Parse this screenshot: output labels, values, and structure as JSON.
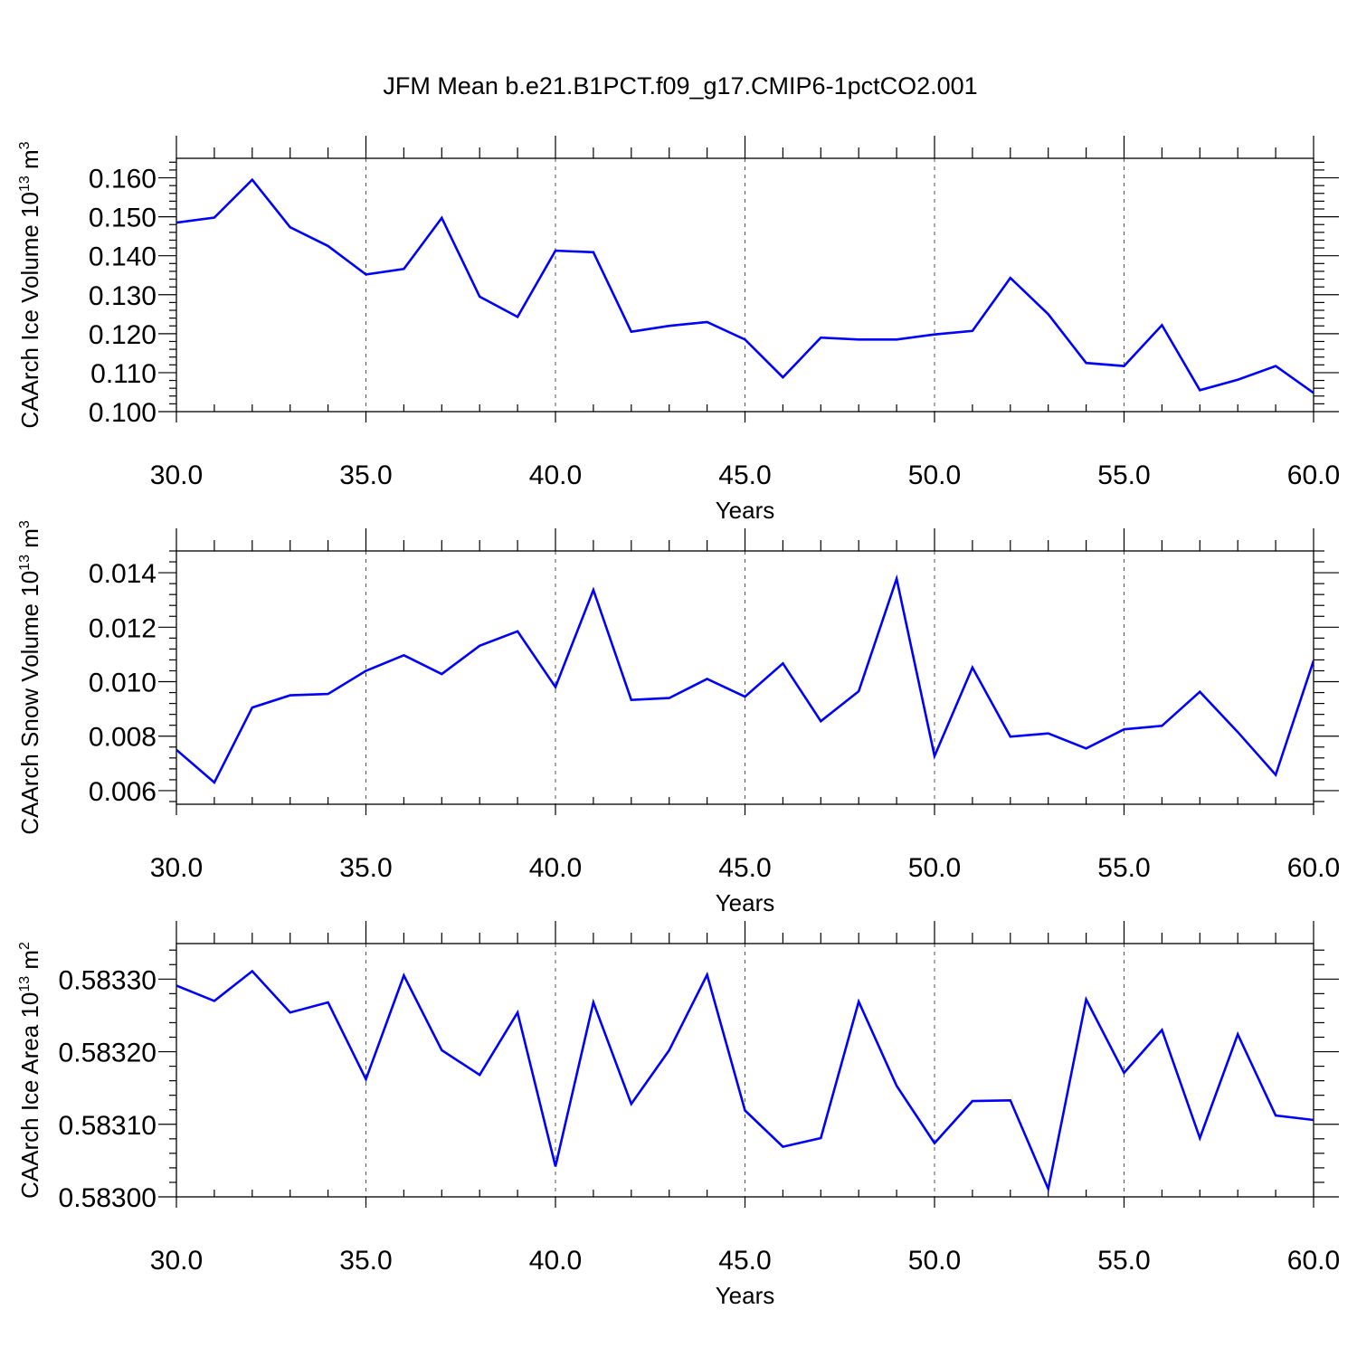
{
  "chart_data": [
    {
      "type": "line",
      "title": "JFM Mean b.e21.B1PCT.f09_g17.CMIP6-1pctCO2.001",
      "xlabel": "Years",
      "ylabel": "CAArch Ice Volume 10^13 m^3",
      "ylabel_parts": {
        "main": "CAArch Ice Volume 10",
        "sup1": "13",
        "mid": " m",
        "sup2": "3"
      },
      "xlim": [
        30,
        60
      ],
      "ylim": [
        0.1,
        0.165
      ],
      "xticks": [
        "30.0",
        "35.0",
        "40.0",
        "45.0",
        "50.0",
        "55.0",
        "60.0"
      ],
      "yticks": [
        {
          "value": 0.1,
          "label": "0.100"
        },
        {
          "value": 0.11,
          "label": "0.110"
        },
        {
          "value": 0.12,
          "label": "0.120"
        },
        {
          "value": 0.13,
          "label": "0.130"
        },
        {
          "value": 0.14,
          "label": "0.140"
        },
        {
          "value": 0.15,
          "label": "0.150"
        },
        {
          "value": 0.16,
          "label": "0.160"
        }
      ],
      "grid": "vertical-dashed",
      "series_color": "#0000ff",
      "x": [
        30,
        31,
        32,
        33,
        34,
        35,
        36,
        37,
        38,
        39,
        40,
        41,
        42,
        43,
        44,
        45,
        46,
        47,
        48,
        49,
        50,
        51,
        52,
        53,
        54,
        55,
        56,
        57,
        58,
        59,
        60
      ],
      "values": [
        0.1485,
        0.1498,
        0.1595,
        0.1473,
        0.1425,
        0.1352,
        0.1366,
        0.1497,
        0.1295,
        0.1243,
        0.1413,
        0.1409,
        0.1205,
        0.122,
        0.123,
        0.1185,
        0.1088,
        0.119,
        0.1185,
        0.1185,
        0.1198,
        0.1207,
        0.1343,
        0.125,
        0.1125,
        0.1117,
        0.1222,
        0.1055,
        0.1082,
        0.1117,
        0.1048
      ]
    },
    {
      "type": "line",
      "title": "",
      "xlabel": "Years",
      "ylabel": "CAArch Snow Volume 10^13 m^3",
      "ylabel_parts": {
        "main": "CAArch Snow Volume 10",
        "sup1": "13",
        "mid": " m",
        "sup2": "3"
      },
      "xlim": [
        30,
        60
      ],
      "ylim": [
        0.0055,
        0.0148
      ],
      "xticks": [
        "30.0",
        "35.0",
        "40.0",
        "45.0",
        "50.0",
        "55.0",
        "60.0"
      ],
      "yticks": [
        {
          "value": 0.006,
          "label": "0.006"
        },
        {
          "value": 0.008,
          "label": "0.008"
        },
        {
          "value": 0.01,
          "label": "0.010"
        },
        {
          "value": 0.012,
          "label": "0.012"
        },
        {
          "value": 0.014,
          "label": "0.014"
        }
      ],
      "grid": "vertical-dashed",
      "series_color": "#0000ff",
      "x": [
        30,
        31,
        32,
        33,
        34,
        35,
        36,
        37,
        38,
        39,
        40,
        41,
        42,
        43,
        44,
        45,
        46,
        47,
        48,
        49,
        50,
        51,
        52,
        53,
        54,
        55,
        56,
        57,
        58,
        59,
        60
      ],
      "values": [
        0.0075,
        0.0063,
        0.00905,
        0.0095,
        0.00955,
        0.0104,
        0.01097,
        0.01028,
        0.01132,
        0.01185,
        0.0098,
        0.01337,
        0.00933,
        0.0094,
        0.0101,
        0.00945,
        0.01067,
        0.00855,
        0.00965,
        0.01378,
        0.00727,
        0.01052,
        0.00798,
        0.0081,
        0.00755,
        0.00825,
        0.00838,
        0.00963,
        0.00815,
        0.00658,
        0.01077
      ]
    },
    {
      "type": "line",
      "title": "",
      "xlabel": "Years",
      "ylabel": "CAArch Ice Area 10^13 m^2",
      "ylabel_parts": {
        "main": "CAArch Ice Area 10",
        "sup1": "13",
        "mid": " m",
        "sup2": "2"
      },
      "xlim": [
        30,
        60
      ],
      "ylim": [
        0.583,
        0.583349
      ],
      "xticks": [
        "30.0",
        "35.0",
        "40.0",
        "45.0",
        "50.0",
        "55.0",
        "60.0"
      ],
      "yticks": [
        {
          "value": 0.583,
          "label": "0.58300"
        },
        {
          "value": 0.5831,
          "label": "0.58310"
        },
        {
          "value": 0.5832,
          "label": "0.58320"
        },
        {
          "value": 0.5833,
          "label": "0.58330"
        }
      ],
      "grid": "vertical-dashed",
      "series_color": "#0000ff",
      "x": [
        30,
        31,
        32,
        33,
        34,
        35,
        36,
        37,
        38,
        39,
        40,
        41,
        42,
        43,
        44,
        45,
        46,
        47,
        48,
        49,
        50,
        51,
        52,
        53,
        54,
        55,
        56,
        57,
        58,
        59,
        60
      ],
      "values": [
        0.583291,
        0.58327,
        0.583311,
        0.583254,
        0.583268,
        0.583162,
        0.583305,
        0.583202,
        0.583168,
        0.583254,
        0.583042,
        0.583268,
        0.583128,
        0.583202,
        0.583306,
        0.583119,
        0.583069,
        0.583081,
        0.583269,
        0.583153,
        0.583074,
        0.583132,
        0.583133,
        0.583011,
        0.583272,
        0.583171,
        0.58323,
        0.583081,
        0.583224,
        0.583112,
        0.583106
      ]
    }
  ]
}
